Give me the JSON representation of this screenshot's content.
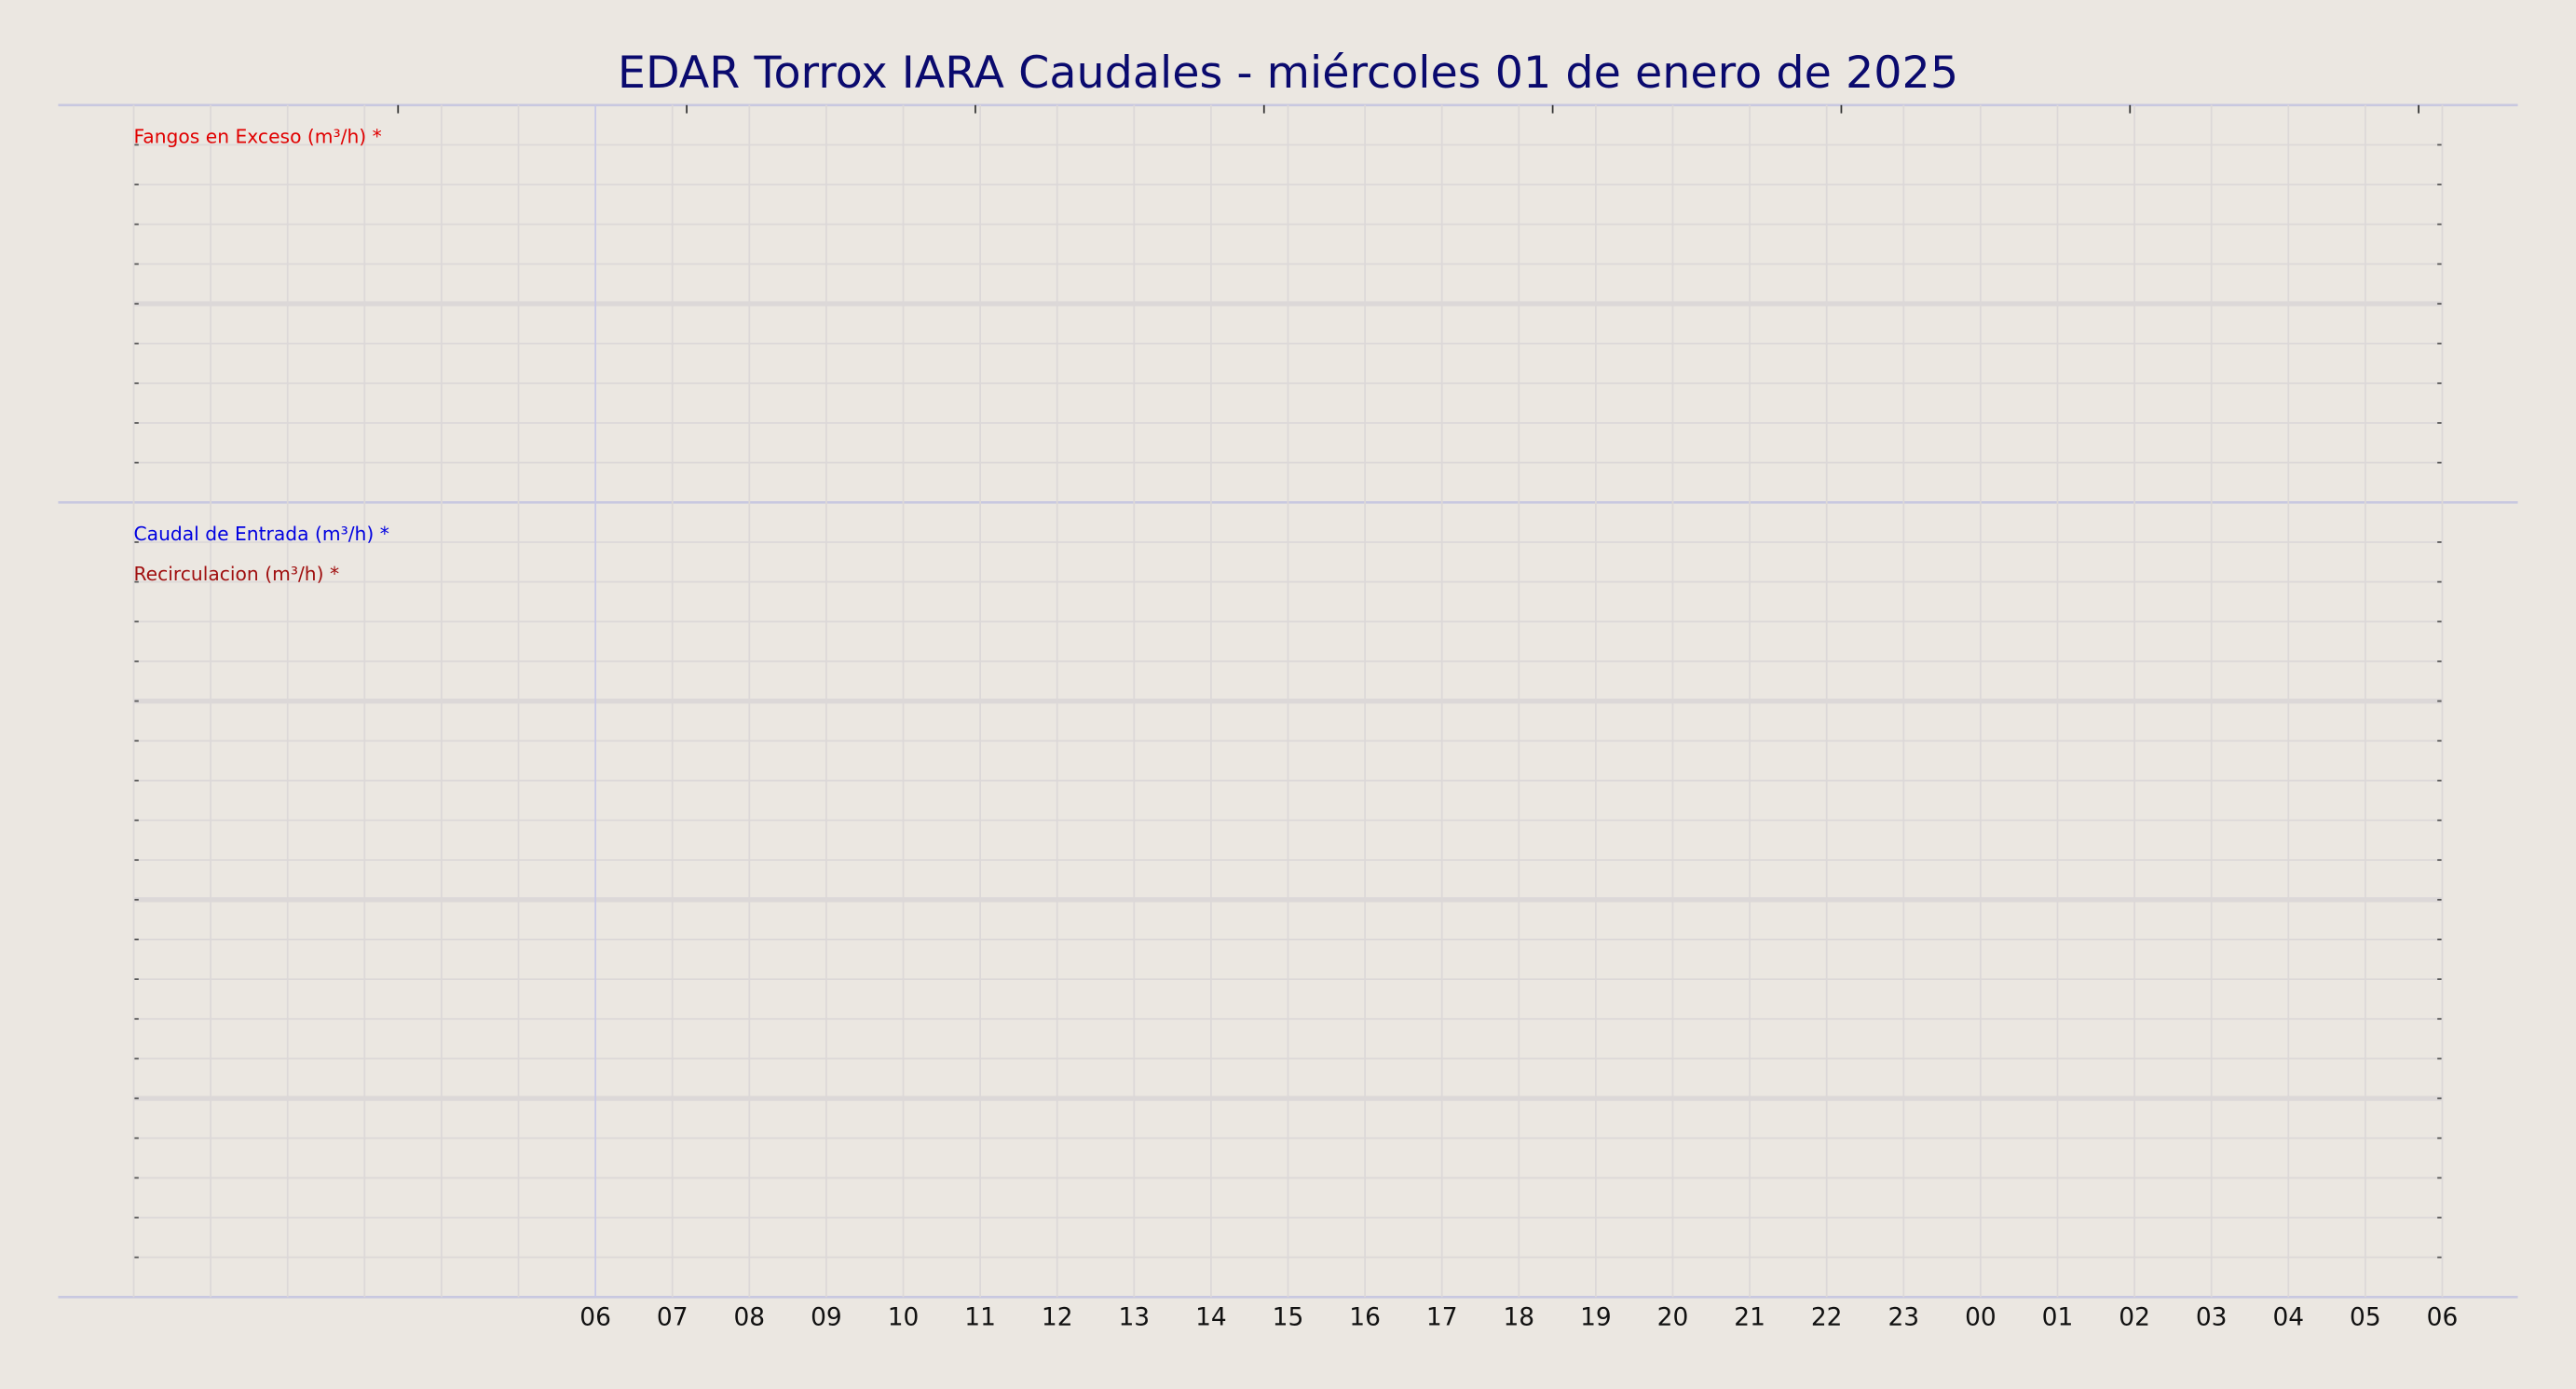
{
  "chart_data": {
    "type": "line",
    "title": "EDAR Torrox IARA Caudales   -   miércoles 01 de enero de 2025",
    "categories": [
      null,
      null,
      null,
      null,
      null,
      null,
      "06",
      "07",
      "08",
      "09",
      "10",
      "11",
      "12",
      "13",
      "14",
      "15",
      "16",
      "17",
      "18",
      "19",
      "20",
      "21",
      "22",
      "23",
      "00",
      "01",
      "02",
      "03",
      "04",
      "05",
      "06"
    ],
    "grid": true,
    "series": [
      {
        "name": "Fangos en Exceso (m³/h) *",
        "color": "#e00000",
        "panel": 0,
        "values": [
          null,
          null,
          null,
          null,
          null,
          null,
          null,
          null,
          null,
          null,
          null,
          null,
          null,
          null,
          null,
          null,
          null,
          null,
          null,
          null,
          null,
          null,
          null,
          null,
          null,
          null,
          null,
          null,
          null,
          null,
          null
        ]
      },
      {
        "name": "Caudal de Entrada (m³/h) *",
        "color": "#0000e0",
        "panel": 1,
        "values": [
          null,
          null,
          null,
          null,
          null,
          null,
          null,
          null,
          null,
          null,
          null,
          null,
          null,
          null,
          null,
          null,
          null,
          null,
          null,
          null,
          null,
          null,
          null,
          null,
          null,
          null,
          null,
          null,
          null,
          null,
          null
        ]
      },
      {
        "name": "Recirculacion (m³/h) *",
        "color": "#a01010",
        "panel": 1,
        "values": [
          null,
          null,
          null,
          null,
          null,
          null,
          null,
          null,
          null,
          null,
          null,
          null,
          null,
          null,
          null,
          null,
          null,
          null,
          null,
          null,
          null,
          null,
          null,
          null,
          null,
          null,
          null,
          null,
          null,
          null,
          null
        ]
      }
    ]
  }
}
